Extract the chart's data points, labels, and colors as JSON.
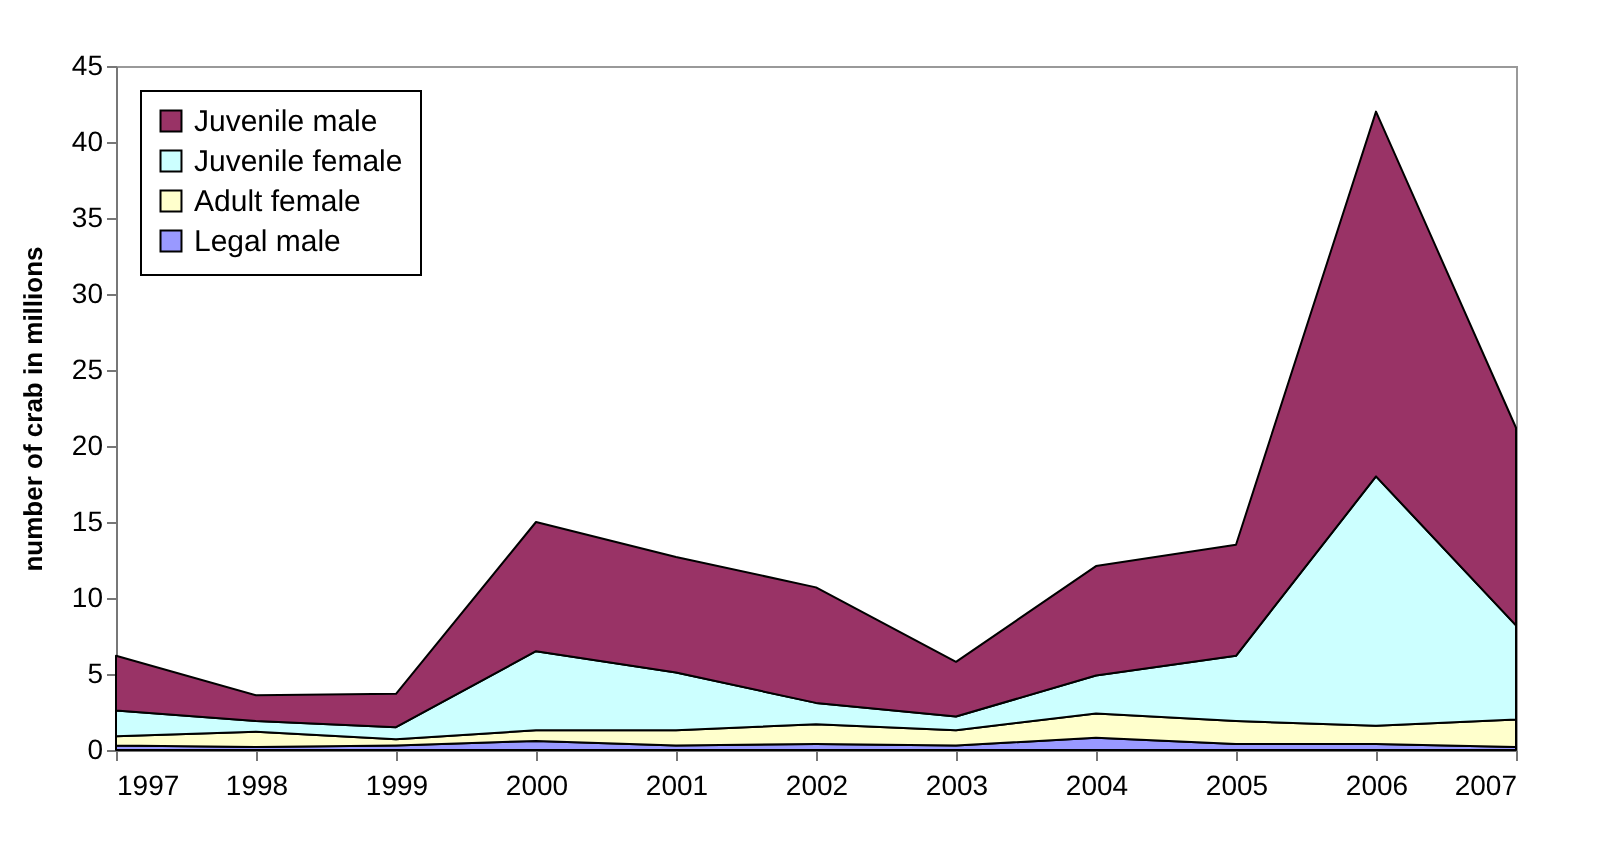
{
  "chart_data": {
    "type": "area",
    "ylabel": "number of crab in millions",
    "stacked": true,
    "x": [
      1997,
      1998,
      1999,
      2000,
      2001,
      2002,
      2003,
      2004,
      2005,
      2006,
      2007
    ],
    "xlim": [
      1997,
      2007
    ],
    "xticks": [
      1997,
      1998,
      1999,
      2000,
      2001,
      2002,
      2003,
      2004,
      2005,
      2006,
      2007
    ],
    "ylim": [
      0,
      45
    ],
    "yticks": [
      0,
      5,
      10,
      15,
      20,
      25,
      30,
      35,
      40,
      45
    ],
    "legend": "top left",
    "grid": false,
    "series": [
      {
        "name": "Legal male",
        "color": "#9999ff",
        "values": [
          0.3,
          0.2,
          0.3,
          0.6,
          0.3,
          0.4,
          0.3,
          0.8,
          0.4,
          0.4,
          0.2
        ]
      },
      {
        "name": "Adult female",
        "color": "#ffffcc",
        "values": [
          0.6,
          1.0,
          0.4,
          0.7,
          1.0,
          1.3,
          1.0,
          1.6,
          1.5,
          1.2,
          1.8
        ]
      },
      {
        "name": "Juvenile female",
        "color": "#ccffff",
        "values": [
          1.7,
          0.7,
          0.8,
          5.2,
          3.8,
          1.4,
          0.9,
          2.5,
          4.3,
          16.4,
          6.2
        ]
      },
      {
        "name": "Juvenile male",
        "color": "#993366",
        "values": [
          3.6,
          1.7,
          2.2,
          8.5,
          7.6,
          7.6,
          3.6,
          7.2,
          7.3,
          24.0,
          13.0
        ]
      }
    ]
  }
}
